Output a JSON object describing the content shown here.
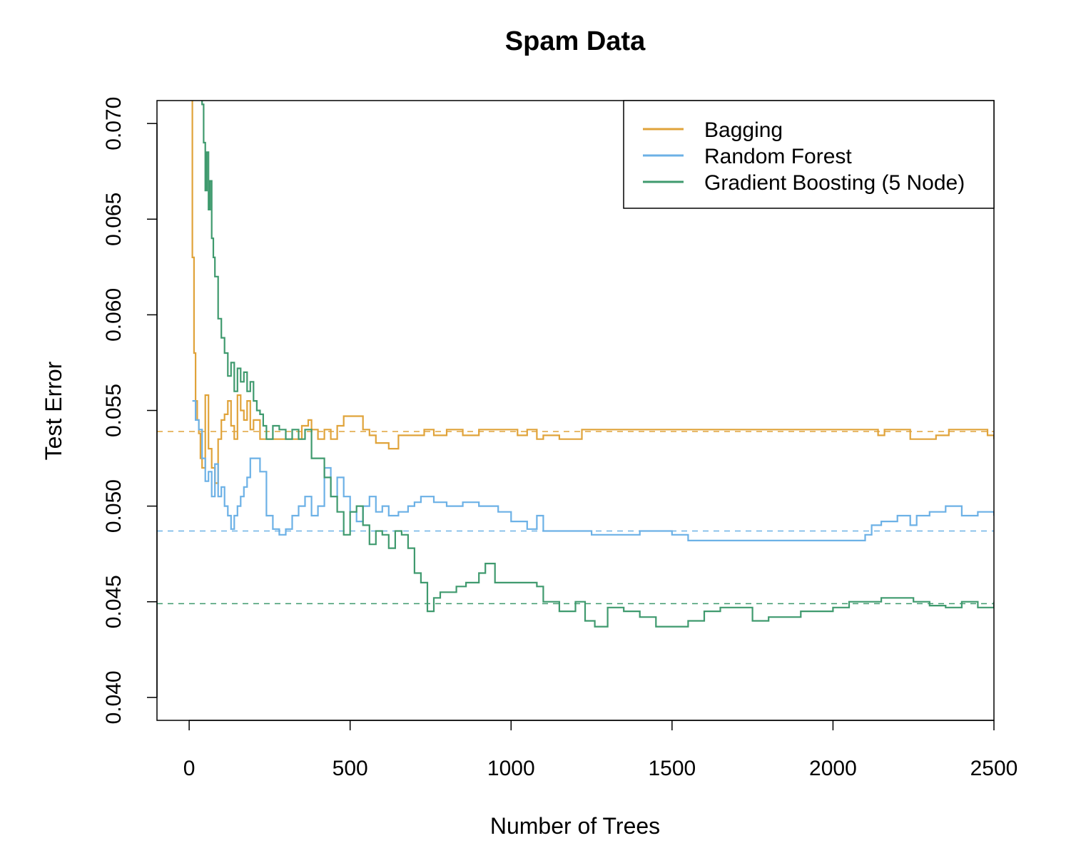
{
  "chart_data": {
    "type": "line",
    "title": "Spam Data",
    "xlabel": "Number of Trees",
    "ylabel": "Test Error",
    "xlim": [
      -100,
      2500
    ],
    "ylim": [
      0.0388,
      0.0712
    ],
    "xticks": [
      0,
      500,
      1000,
      1500,
      2000,
      2500
    ],
    "xtick_labels": [
      "0",
      "500",
      "1000",
      "1500",
      "2000",
      "2500"
    ],
    "yticks": [
      0.04,
      0.045,
      0.05,
      0.055,
      0.06,
      0.065,
      0.07
    ],
    "ytick_labels": [
      "0.040",
      "0.045",
      "0.050",
      "0.055",
      "0.060",
      "0.065",
      "0.070"
    ],
    "grid": false,
    "legend_position": "top-right",
    "series": [
      {
        "name": "Bagging",
        "color": "#E0A33A",
        "reference_value": 0.0539,
        "x": [
          5,
          10,
          15,
          20,
          25,
          30,
          35,
          40,
          50,
          60,
          70,
          80,
          90,
          100,
          110,
          120,
          130,
          140,
          150,
          160,
          170,
          180,
          190,
          200,
          220,
          250,
          300,
          330,
          350,
          370,
          380,
          400,
          420,
          440,
          460,
          480,
          500,
          540,
          560,
          580,
          600,
          620,
          650,
          680,
          700,
          730,
          760,
          800,
          850,
          900,
          950,
          1000,
          1020,
          1050,
          1080,
          1100,
          1150,
          1200,
          1220,
          1300,
          1500,
          1700,
          1900,
          2100,
          2140,
          2160,
          2200,
          2240,
          2280,
          2320,
          2360,
          2400,
          2440,
          2480,
          2500
        ],
        "y": [
          0.0715,
          0.063,
          0.058,
          0.0555,
          0.0545,
          0.0538,
          0.0525,
          0.052,
          0.0558,
          0.053,
          0.052,
          0.0512,
          0.0535,
          0.0545,
          0.0548,
          0.0555,
          0.0542,
          0.0535,
          0.0558,
          0.055,
          0.0545,
          0.0555,
          0.054,
          0.0545,
          0.0535,
          0.0535,
          0.0535,
          0.0535,
          0.0542,
          0.0545,
          0.054,
          0.0535,
          0.054,
          0.0535,
          0.0542,
          0.0547,
          0.0547,
          0.054,
          0.0537,
          0.0533,
          0.0533,
          0.053,
          0.0537,
          0.0537,
          0.0537,
          0.054,
          0.0537,
          0.054,
          0.0537,
          0.054,
          0.054,
          0.054,
          0.0537,
          0.054,
          0.0535,
          0.0537,
          0.0535,
          0.0535,
          0.054,
          0.054,
          0.054,
          0.054,
          0.054,
          0.054,
          0.0537,
          0.054,
          0.054,
          0.0535,
          0.0535,
          0.0537,
          0.054,
          0.054,
          0.054,
          0.0537,
          0.0535
        ]
      },
      {
        "name": "Random Forest",
        "color": "#6CB1E6",
        "reference_value": 0.0487,
        "x": [
          10,
          20,
          30,
          40,
          50,
          60,
          70,
          80,
          90,
          100,
          110,
          120,
          130,
          140,
          150,
          160,
          170,
          180,
          190,
          200,
          220,
          240,
          260,
          280,
          300,
          320,
          340,
          360,
          380,
          400,
          420,
          440,
          460,
          480,
          500,
          520,
          540,
          560,
          580,
          600,
          620,
          650,
          680,
          700,
          720,
          760,
          800,
          850,
          900,
          960,
          1000,
          1050,
          1080,
          1100,
          1150,
          1200,
          1250,
          1300,
          1350,
          1400,
          1450,
          1500,
          1550,
          1600,
          1800,
          2000,
          2100,
          2120,
          2150,
          2200,
          2240,
          2260,
          2300,
          2350,
          2400,
          2450,
          2500
        ],
        "y": [
          0.0555,
          0.0545,
          0.054,
          0.0525,
          0.0513,
          0.0518,
          0.0505,
          0.0522,
          0.0505,
          0.051,
          0.05,
          0.0495,
          0.0488,
          0.0495,
          0.05,
          0.0505,
          0.051,
          0.0515,
          0.0525,
          0.0525,
          0.0518,
          0.0495,
          0.0488,
          0.0485,
          0.0488,
          0.0495,
          0.05,
          0.0505,
          0.0495,
          0.05,
          0.052,
          0.0505,
          0.0515,
          0.0505,
          0.0497,
          0.0492,
          0.05,
          0.0505,
          0.0497,
          0.05,
          0.0495,
          0.0497,
          0.05,
          0.0502,
          0.0505,
          0.0502,
          0.05,
          0.0502,
          0.05,
          0.0497,
          0.0492,
          0.0488,
          0.0495,
          0.0487,
          0.0487,
          0.0487,
          0.0485,
          0.0485,
          0.0485,
          0.0487,
          0.0487,
          0.0485,
          0.0482,
          0.0482,
          0.0482,
          0.0482,
          0.0485,
          0.049,
          0.0492,
          0.0495,
          0.049,
          0.0495,
          0.0497,
          0.05,
          0.0495,
          0.0497,
          0.0495
        ]
      },
      {
        "name": "Gradient Boosting (5 Node)",
        "color": "#3F9A6E",
        "reference_value": 0.0449,
        "x": [
          35,
          40,
          45,
          50,
          55,
          60,
          65,
          70,
          75,
          80,
          90,
          100,
          110,
          120,
          130,
          140,
          150,
          160,
          170,
          180,
          190,
          200,
          210,
          220,
          230,
          240,
          260,
          280,
          300,
          320,
          340,
          360,
          380,
          400,
          420,
          440,
          460,
          480,
          500,
          520,
          540,
          560,
          580,
          600,
          620,
          640,
          660,
          680,
          700,
          720,
          740,
          760,
          780,
          800,
          830,
          860,
          900,
          920,
          950,
          1000,
          1050,
          1080,
          1100,
          1150,
          1200,
          1230,
          1260,
          1300,
          1350,
          1400,
          1450,
          1500,
          1550,
          1600,
          1650,
          1700,
          1750,
          1800,
          1850,
          1900,
          1950,
          2000,
          2050,
          2100,
          2150,
          2200,
          2250,
          2300,
          2350,
          2400,
          2450,
          2500
        ],
        "y": [
          0.0725,
          0.071,
          0.069,
          0.0665,
          0.0685,
          0.0655,
          0.067,
          0.064,
          0.063,
          0.062,
          0.0598,
          0.0588,
          0.058,
          0.0568,
          0.0575,
          0.056,
          0.0572,
          0.0565,
          0.057,
          0.056,
          0.0565,
          0.0555,
          0.055,
          0.0548,
          0.0542,
          0.0535,
          0.0542,
          0.054,
          0.0535,
          0.054,
          0.0535,
          0.054,
          0.0525,
          0.0525,
          0.0515,
          0.0505,
          0.0497,
          0.0485,
          0.0497,
          0.05,
          0.049,
          0.048,
          0.0487,
          0.0485,
          0.0478,
          0.0487,
          0.0485,
          0.0478,
          0.0465,
          0.046,
          0.0445,
          0.0452,
          0.0455,
          0.0455,
          0.0458,
          0.046,
          0.0465,
          0.047,
          0.046,
          0.046,
          0.046,
          0.0458,
          0.045,
          0.0445,
          0.045,
          0.044,
          0.0437,
          0.0447,
          0.0445,
          0.0442,
          0.0437,
          0.0437,
          0.044,
          0.0445,
          0.0447,
          0.0447,
          0.044,
          0.0442,
          0.0442,
          0.0445,
          0.0445,
          0.0447,
          0.045,
          0.045,
          0.0452,
          0.0452,
          0.045,
          0.0448,
          0.0447,
          0.045,
          0.0447,
          0.045
        ]
      }
    ]
  }
}
